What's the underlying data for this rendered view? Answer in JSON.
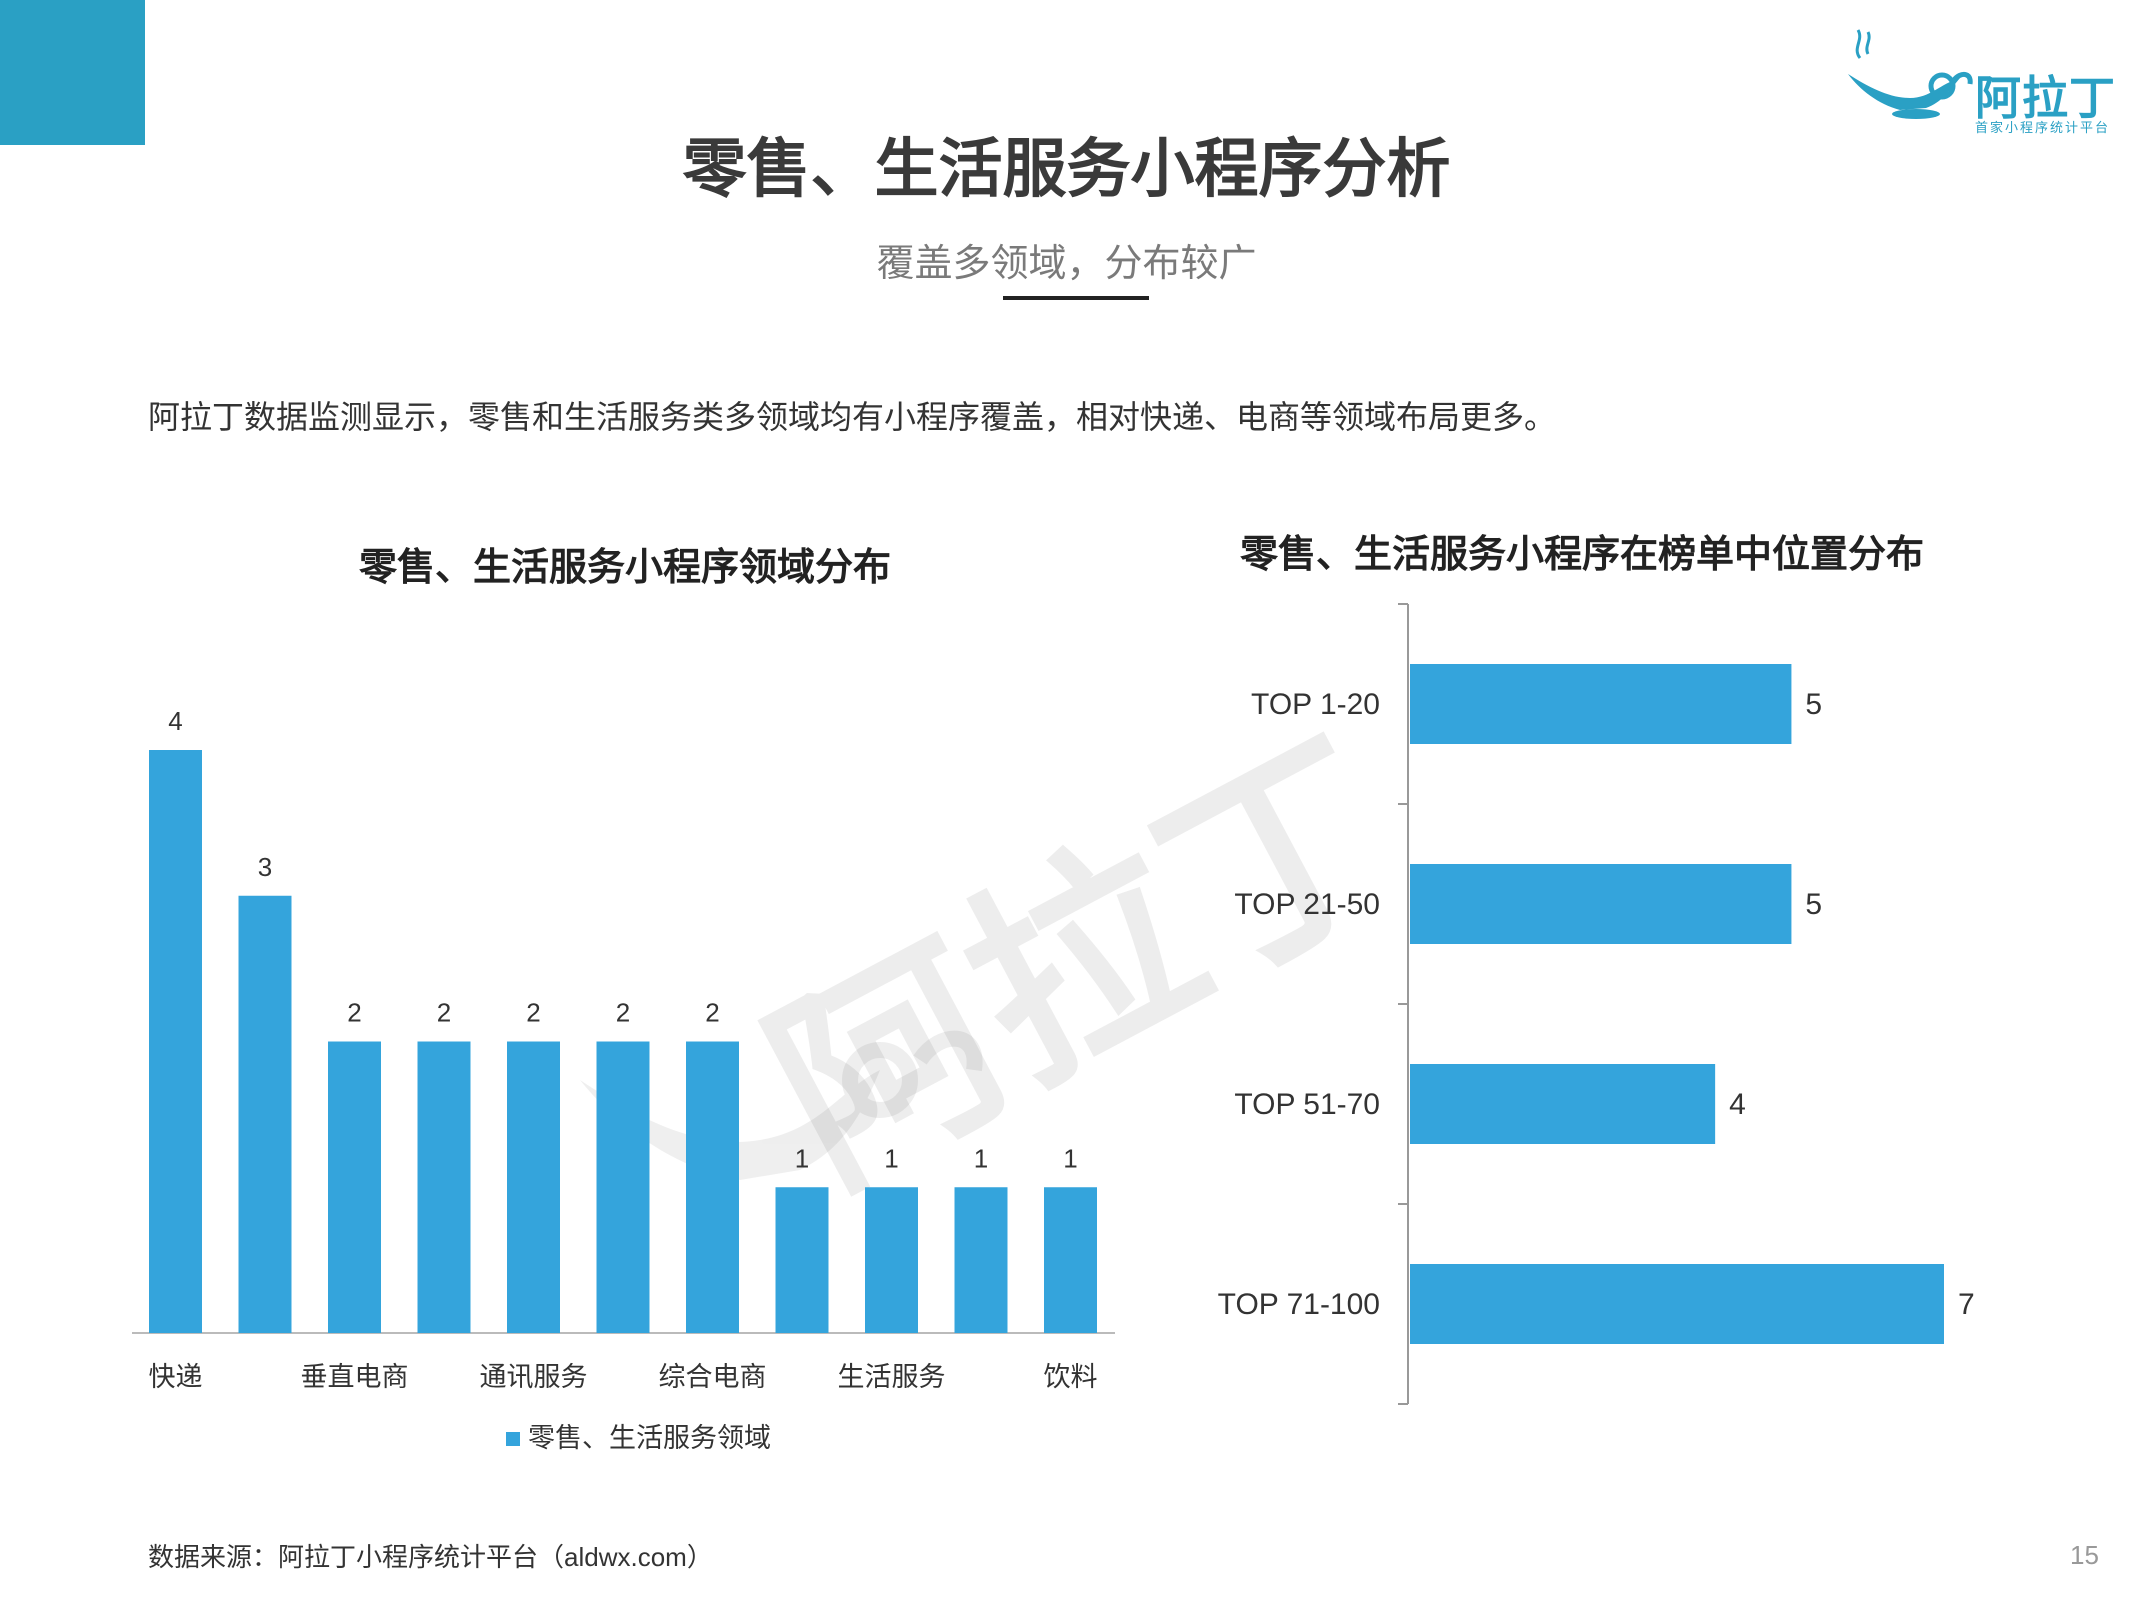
{
  "header": {
    "title": "零售、生活服务小程序分析",
    "subtitle": "覆盖多领域，分布较广"
  },
  "brand": {
    "name": "阿拉丁",
    "tagline": "首家小程序统计平台",
    "accent_color": "#2aa0c4",
    "logo_icon": "magic-lamp-icon"
  },
  "intro": "阿拉丁数据监测显示，零售和生活服务类多领域均有小程序覆盖，相对快递、电商等领域布局更多。",
  "footer": {
    "source": "数据来源：阿拉丁小程序统计平台（aldwx.com）",
    "page_number": "15"
  },
  "watermark": {
    "text": "阿拉丁"
  },
  "chart_data": [
    {
      "type": "bar",
      "title": "零售、生活服务小程序领域分布",
      "categories": [
        "快递",
        "",
        "垂直电商",
        "",
        "通讯服务",
        "",
        "综合电商",
        "",
        "生活服务",
        "",
        "饮料"
      ],
      "series": [
        {
          "name": "零售、生活服务领域",
          "values": [
            4,
            3,
            2,
            2,
            2,
            2,
            2,
            1,
            1,
            1,
            1
          ],
          "color": "#34a4dc"
        }
      ],
      "ylim": [
        0,
        4
      ],
      "legend": "bottom",
      "grid": false
    },
    {
      "type": "bar",
      "orientation": "horizontal",
      "title": "零售、生活服务小程序在榜单中位置分布",
      "categories": [
        "TOP 1-20",
        "TOP 21-50",
        "TOP 51-70",
        "TOP 71-100"
      ],
      "series": [
        {
          "values": [
            5,
            5,
            4,
            7
          ],
          "color": "#34a4dc"
        }
      ],
      "xlim": [
        0,
        7
      ],
      "grid": false
    }
  ]
}
